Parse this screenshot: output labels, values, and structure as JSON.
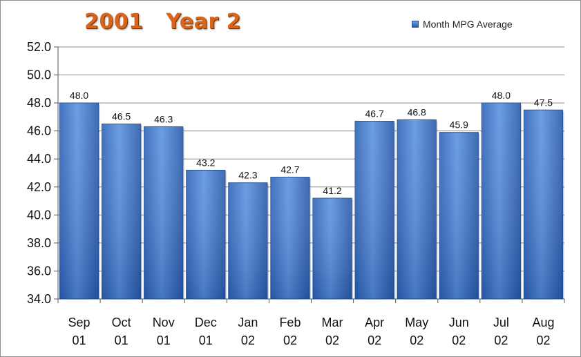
{
  "chart_data": {
    "type": "bar",
    "title": "2001   Year 2",
    "categories": [
      [
        "Sep",
        "01"
      ],
      [
        "Oct",
        "01"
      ],
      [
        "Nov",
        "01"
      ],
      [
        "Dec",
        "01"
      ],
      [
        "Jan",
        "02"
      ],
      [
        "Feb",
        "02"
      ],
      [
        "Mar",
        "02"
      ],
      [
        "Apr",
        "02"
      ],
      [
        "May",
        "02"
      ],
      [
        "Jun",
        "02"
      ],
      [
        "Jul",
        "02"
      ],
      [
        "Aug",
        "02"
      ]
    ],
    "series": [
      {
        "name": "Month MPG Average",
        "values": [
          48.0,
          46.5,
          46.3,
          43.2,
          42.3,
          42.7,
          41.2,
          46.7,
          46.8,
          45.9,
          48.0,
          47.5
        ],
        "labels": [
          "48.0",
          "46.5",
          "46.3",
          "43.2",
          "42.3",
          "42.7",
          "41.2",
          "46.7",
          "46.8",
          "45.9",
          "48.0",
          "47.5"
        ]
      }
    ],
    "ylim": [
      34,
      52
    ],
    "yticks": [
      "34.0",
      "36.0",
      "38.0",
      "40.0",
      "42.0",
      "44.0",
      "46.0",
      "48.0",
      "50.0",
      "52.0"
    ],
    "ytick_values": [
      34,
      36,
      38,
      40,
      42,
      44,
      46,
      48,
      50,
      52
    ],
    "grid": true,
    "legend": "top-right",
    "colors": {
      "bar_top": "#6fa2e6",
      "bar_bottom": "#2a5cb0",
      "bar_edge": "#1d4c98",
      "title": "#d9651a"
    }
  }
}
